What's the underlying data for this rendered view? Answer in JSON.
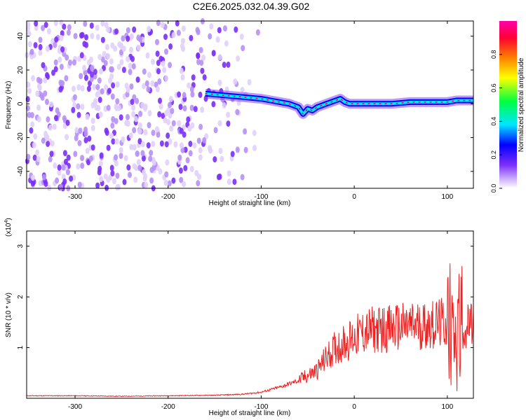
{
  "title": "C2E6.2025.032.04.39.G02",
  "chart_data": [
    {
      "type": "heatmap",
      "title": "C2E6.2025.032.04.39.G02",
      "xlabel": "Height of straight line (km)",
      "ylabel": "Frequency (Hz)",
      "xlim": [
        -352,
        128
      ],
      "ylim": [
        -50,
        49
      ],
      "xticks": [
        -300,
        -200,
        -100,
        0,
        100
      ],
      "xtick_labels": [
        "-300",
        "-200",
        "-100",
        "0",
        "100"
      ],
      "yticks": [
        -40,
        -20,
        0,
        20,
        40
      ],
      "ytick_labels": [
        "-40",
        "-20",
        "0",
        "20",
        "40"
      ],
      "colorbar": {
        "label": "Normalized spectral amplitude",
        "range": [
          0,
          1
        ],
        "ticks": [
          0.0,
          0.2,
          0.4,
          0.6,
          0.8
        ],
        "tick_labels": [
          "0.0",
          "0.2",
          "0.4",
          "0.6",
          "0.8"
        ],
        "colors": [
          "#ffffff",
          "#7b2ff7",
          "#0000ff",
          "#00e5ff",
          "#00ff40",
          "#ffff00",
          "#ff8000",
          "#ff0033",
          "#ff00aa"
        ]
      },
      "signal_track": {
        "x": [
          -160,
          -140,
          -120,
          -100,
          -90,
          -80,
          -70,
          -60,
          -55,
          -50,
          -45,
          -40,
          -35,
          -30,
          -25,
          -20,
          -15,
          -10,
          -5,
          0,
          20,
          40,
          60,
          80,
          100,
          110,
          128
        ],
        "y": [
          6,
          5,
          4,
          3,
          2,
          1,
          0,
          -2,
          -6,
          -3,
          -4,
          -2,
          -1,
          0,
          1,
          2,
          3,
          1,
          0,
          0,
          0,
          0,
          1,
          1,
          1,
          2,
          2
        ]
      }
    },
    {
      "type": "line",
      "xlabel": "Height of straight line (km)",
      "ylabel": "SNR (10 * v/v)",
      "y_multiplier": "(x10",
      "y_multiplier_exp": "4",
      "xlim": [
        -352,
        128
      ],
      "ylim": [
        0,
        3.3
      ],
      "xticks": [
        -300,
        -200,
        -100,
        0,
        100
      ],
      "xtick_labels": [
        "-300",
        "-200",
        "-100",
        "0",
        "100"
      ],
      "yticks": [
        1,
        2,
        3
      ],
      "ytick_labels": [
        "1",
        "2",
        "3"
      ],
      "color": "#ee2222",
      "x": [
        -352,
        -300,
        -250,
        -200,
        -150,
        -120,
        -100,
        -80,
        -60,
        -40,
        -30,
        -20,
        -10,
        0,
        10,
        20,
        40,
        60,
        80,
        100,
        105,
        110,
        115,
        120,
        128
      ],
      "y": [
        0.05,
        0.05,
        0.04,
        0.05,
        0.06,
        0.08,
        0.12,
        0.22,
        0.35,
        0.55,
        0.8,
        1.0,
        1.1,
        1.2,
        1.3,
        1.35,
        1.38,
        1.42,
        1.45,
        1.48,
        1.8,
        1.2,
        1.5,
        1.4,
        1.4
      ]
    }
  ]
}
